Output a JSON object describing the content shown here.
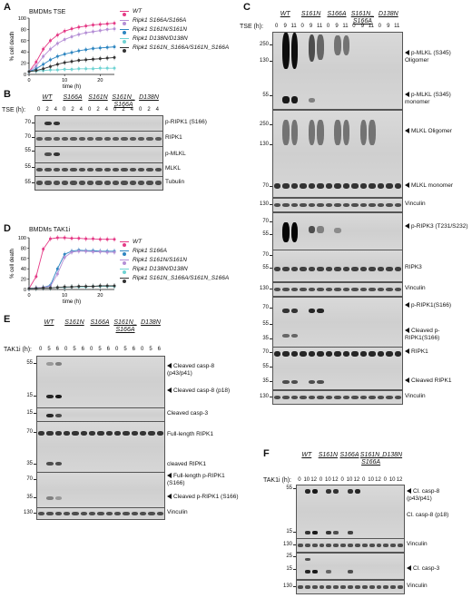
{
  "panel_letters": {
    "A": "A",
    "B": "B",
    "C": "C",
    "D": "D",
    "E": "E",
    "F": "F"
  },
  "chart_data": [
    {
      "type": "line",
      "title": "BMDMs TSE",
      "xlabel": "time (h)",
      "ylabel": "% cell death",
      "ylim": [
        0,
        100
      ],
      "xlim": [
        0,
        24
      ],
      "x_ticks": [
        "0",
        "10",
        "20"
      ],
      "y_ticks": [
        "0",
        "20",
        "40",
        "60",
        "80",
        "100"
      ],
      "x": [
        0,
        2,
        4,
        6,
        8,
        10,
        12,
        14,
        16,
        18,
        20,
        22,
        24
      ],
      "series": [
        {
          "name": "WT",
          "color": "#e53a86",
          "values": [
            5,
            22,
            45,
            60,
            70,
            77,
            81,
            84,
            86,
            88,
            89,
            90,
            91
          ]
        },
        {
          "name": "Ripk1 S166A/S166A",
          "color": "#b58fd6",
          "values": [
            5,
            15,
            32,
            45,
            55,
            62,
            67,
            71,
            74,
            76,
            78,
            80,
            81
          ]
        },
        {
          "name": "Ripk1 S161N/S161N",
          "color": "#2e86c1",
          "values": [
            5,
            10,
            18,
            26,
            32,
            36,
            39,
            42,
            44,
            46,
            47,
            48,
            49
          ]
        },
        {
          "name": "Ripk1 D138N/D138N",
          "color": "#6fd3d3",
          "values": [
            5,
            6,
            7,
            8,
            8,
            9,
            9,
            10,
            10,
            10,
            11,
            11,
            11
          ]
        },
        {
          "name": "Ripk1 S161N_S166A/S161N_S166A",
          "color": "#333333",
          "values": [
            5,
            7,
            10,
            14,
            18,
            21,
            23,
            25,
            26,
            27,
            28,
            29,
            30
          ]
        }
      ]
    },
    {
      "type": "line",
      "title": "BMDMs TAK1i",
      "xlabel": "time (h)",
      "ylabel": "% cell death",
      "ylim": [
        0,
        100
      ],
      "xlim": [
        0,
        24
      ],
      "x_ticks": [
        "0",
        "10",
        "20"
      ],
      "y_ticks": [
        "0",
        "20",
        "40",
        "60",
        "80",
        "100"
      ],
      "x": [
        0,
        2,
        4,
        6,
        8,
        10,
        12,
        14,
        16,
        18,
        20,
        22,
        24
      ],
      "series": [
        {
          "name": "WT",
          "color": "#e53a86",
          "values": [
            2,
            25,
            78,
            98,
            100,
            100,
            99,
            99,
            98,
            98,
            97,
            97,
            97
          ]
        },
        {
          "name": "Ripk1 S166A",
          "color": "#2e86c1",
          "values": [
            2,
            3,
            4,
            8,
            40,
            68,
            74,
            76,
            75,
            75,
            74,
            74,
            74
          ]
        },
        {
          "name": "Ripk1 S161N/S161N",
          "color": "#b58fd6",
          "values": [
            2,
            3,
            4,
            6,
            30,
            62,
            72,
            74,
            74,
            73,
            73,
            72,
            72
          ]
        },
        {
          "name": "Ripk1 D138N/D138N",
          "color": "#6fd3d3",
          "values": [
            2,
            2,
            3,
            3,
            4,
            4,
            5,
            5,
            5,
            6,
            6,
            6,
            6
          ]
        },
        {
          "name": "Ripk1 S161N_S166A/S161N_S166A",
          "color": "#333333",
          "values": [
            2,
            2,
            3,
            3,
            4,
            5,
            5,
            6,
            6,
            6,
            7,
            7,
            7
          ]
        }
      ]
    }
  ],
  "panelB": {
    "row_label": "TSE (h):",
    "groups": [
      "WT",
      "S166A",
      "S161N",
      "S161N_ S166A",
      "D138N"
    ],
    "times": [
      "0",
      "2",
      "4",
      "0",
      "2",
      "4",
      "0",
      "2",
      "4",
      "0",
      "2",
      "4",
      "0",
      "2",
      "4"
    ],
    "blots": [
      {
        "label": "p-RIPK1 (S166)",
        "mw": [
          "70"
        ]
      },
      {
        "label": "RIPK1",
        "mw": [
          "70"
        ]
      },
      {
        "label": "p-MLKL",
        "mw": [
          "55"
        ]
      },
      {
        "label": "MLKL",
        "mw": [
          "55"
        ]
      },
      {
        "label": "Tubulin",
        "mw": [
          "55"
        ]
      }
    ]
  },
  "panelC": {
    "row_label": "TSE (h):",
    "groups": [
      "WT",
      "S161N",
      "S166A",
      "S161N_ S166A",
      "D138N"
    ],
    "times": [
      "0",
      "9",
      "11",
      "0",
      "9",
      "11",
      "0",
      "9",
      "11",
      "0",
      "9",
      "11",
      "0",
      "9",
      "11"
    ],
    "blots": [
      {
        "label": "p-MLKL (S345) Oligomer",
        "label2": "p-MLKL (S345) monomer",
        "mw": [
          "250",
          "130",
          "55"
        ]
      },
      {
        "label": "MLKL Oligomer",
        "label2": "MLKL monomer",
        "mw": [
          "250",
          "130",
          "70",
          "55"
        ]
      },
      {
        "label": "Vinculin",
        "mw": [
          "130"
        ]
      },
      {
        "label": "p-RIPK3 (T231/S232)",
        "mw": [
          "70",
          "55"
        ]
      },
      {
        "label": "RIPK3",
        "mw": [
          "70",
          "55"
        ]
      },
      {
        "label": "Vinculin",
        "mw": [
          "130"
        ]
      },
      {
        "label": "p-RIPK1(S166)",
        "label2": "Cleaved p-RIPK1(S166)",
        "mw": [
          "70",
          "55",
          "35"
        ]
      },
      {
        "label": "RIPK1",
        "label2": "Cleaved RIPK1",
        "mw": [
          "70",
          "55",
          "35"
        ]
      },
      {
        "label": "Vinculin",
        "mw": [
          "130"
        ]
      }
    ]
  },
  "panelE": {
    "row_label": "TAK1i (h):",
    "groups": [
      "WT",
      "S161N",
      "S166A",
      "S161N_ S166A",
      "D138N"
    ],
    "times": [
      "0",
      "5",
      "6",
      "0",
      "5",
      "6",
      "0",
      "5",
      "6",
      "0",
      "5",
      "6",
      "0",
      "5",
      "6"
    ],
    "blots": [
      {
        "label": "Cleaved casp-8 (p43/p41)",
        "label2": "Cleaved casp-8 (p18)",
        "mw": [
          "55",
          "15"
        ]
      },
      {
        "label": "Cleaved casp-3",
        "mw": [
          "15"
        ]
      },
      {
        "label": "Full-length RIPK1",
        "label2": "cleaved RIPK1",
        "mw": [
          "70",
          "35"
        ]
      },
      {
        "label": "Full-length p-RIPK1 (S166)",
        "label2": "Cleaved p-RIPK1 (S166)",
        "mw": [
          "70",
          "35"
        ]
      },
      {
        "label": "Vinculin",
        "mw": [
          "130"
        ]
      }
    ]
  },
  "panelF": {
    "row_label": "TAK1i (h):",
    "groups": [
      "WT",
      "S161N",
      "S166A",
      "S161N_ S166A",
      "D138N"
    ],
    "times": [
      "0",
      "10",
      "12",
      "0",
      "10",
      "12",
      "0",
      "10",
      "12",
      "0",
      "10",
      "12",
      "0",
      "10",
      "12"
    ],
    "blots": [
      {
        "label": "Cl. casp-8 (p43/p41)",
        "label2": "Cl. casp-8 (p18)",
        "mw": [
          "55",
          "15"
        ]
      },
      {
        "label": "Vinculin",
        "mw": [
          "130"
        ]
      },
      {
        "label": "Cl. casp-3",
        "mw": [
          "25",
          "15"
        ]
      },
      {
        "label": "Vinculin",
        "mw": [
          "130"
        ]
      }
    ]
  }
}
